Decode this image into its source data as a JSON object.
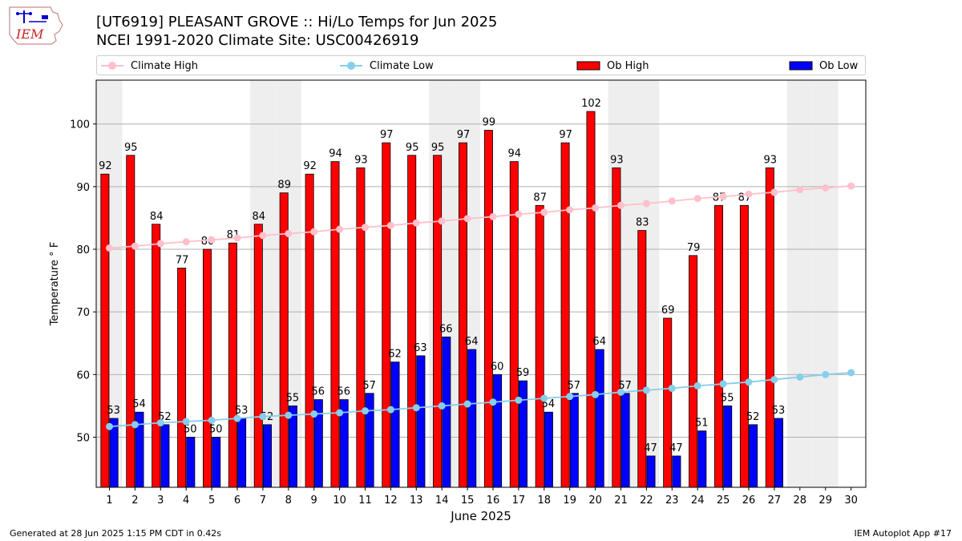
{
  "header": {
    "title_line1": "[UT6919] PLEASANT GROVE :: Hi/Lo Temps for Jun 2025",
    "title_line2": "NCEI 1991-2020 Climate Site: USC00426919"
  },
  "logo": {
    "text": "IEM"
  },
  "footer": {
    "left": "Generated at 28 Jun 2025 1:15 PM CDT in 0.42s",
    "right": "IEM Autoplot App #17"
  },
  "legend": {
    "climate_high": "Climate High",
    "climate_low": "Climate Low",
    "ob_high": "Ob High",
    "ob_low": "Ob Low"
  },
  "colors": {
    "ob_high": "#ff0000",
    "ob_low": "#0000ff",
    "climate_high": "#ffc0cb",
    "climate_low": "#87ceeb",
    "weekend_shade": "#eeeeee",
    "grid": "#b0b0b0"
  },
  "chart_data": {
    "type": "bar",
    "xlabel": "June 2025",
    "ylabel": "Temperature ° F",
    "ylim": [
      42,
      107
    ],
    "yticks": [
      50,
      60,
      70,
      80,
      90,
      100
    ],
    "grid": "horizontal",
    "legend_position": "top",
    "categories": [
      "1",
      "2",
      "3",
      "4",
      "5",
      "6",
      "7",
      "8",
      "9",
      "10",
      "11",
      "12",
      "13",
      "14",
      "15",
      "16",
      "17",
      "18",
      "19",
      "20",
      "21",
      "22",
      "23",
      "24",
      "25",
      "26",
      "27",
      "28",
      "29",
      "30"
    ],
    "weekend_days": [
      1,
      7,
      8,
      14,
      15,
      21,
      22,
      28,
      29
    ],
    "series": [
      {
        "name": "Ob High",
        "kind": "bar",
        "values": [
          92,
          95,
          84,
          77,
          80,
          81,
          84,
          89,
          92,
          94,
          93,
          97,
          95,
          95,
          97,
          99,
          94,
          87,
          97,
          102,
          93,
          83,
          69,
          79,
          87,
          87,
          93,
          null,
          null,
          null
        ]
      },
      {
        "name": "Ob Low",
        "kind": "bar",
        "values": [
          53,
          54,
          52,
          50,
          50,
          53,
          52,
          55,
          56,
          56,
          57,
          62,
          63,
          66,
          64,
          60,
          59,
          54,
          57,
          64,
          57,
          47,
          47,
          51,
          55,
          52,
          53,
          null,
          null,
          null
        ]
      },
      {
        "name": "Climate High",
        "kind": "line",
        "values": [
          80.2,
          80.5,
          80.9,
          81.2,
          81.5,
          81.8,
          82.2,
          82.5,
          82.8,
          83.2,
          83.5,
          83.8,
          84.2,
          84.5,
          84.9,
          85.2,
          85.6,
          85.9,
          86.3,
          86.6,
          87.0,
          87.3,
          87.7,
          88.1,
          88.4,
          88.8,
          89.1,
          89.5,
          89.8,
          90.1
        ]
      },
      {
        "name": "Climate Low",
        "kind": "line",
        "values": [
          51.7,
          52.0,
          52.3,
          52.5,
          52.7,
          53.0,
          53.3,
          53.5,
          53.7,
          53.9,
          54.2,
          54.4,
          54.7,
          55.0,
          55.3,
          55.6,
          55.9,
          56.2,
          56.5,
          56.8,
          57.2,
          57.5,
          57.8,
          58.2,
          58.5,
          58.8,
          59.2,
          59.6,
          60.0,
          60.3
        ]
      }
    ]
  }
}
